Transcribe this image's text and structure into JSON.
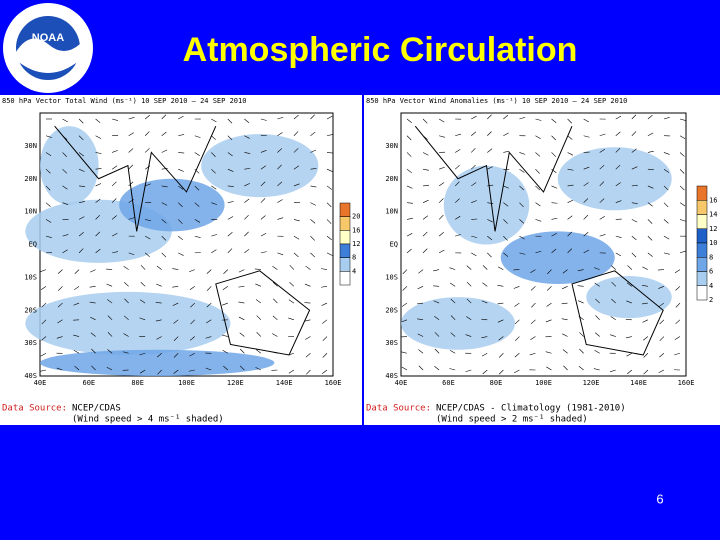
{
  "slide": {
    "title": "Atmospheric Circulation",
    "page_number": "6"
  },
  "panels": [
    {
      "title": "850 hPa Vector Total Wind (ms⁻¹) 10 SEP 2010 — 24 SEP 2010",
      "lat_labels": [
        "30N",
        "20N",
        "10N",
        "EQ",
        "10S",
        "20S",
        "30S",
        "40S"
      ],
      "lon_labels": [
        "40E",
        "60E",
        "80E",
        "100E",
        "120E",
        "140E",
        "160E"
      ],
      "colorbar_labels": [
        "20",
        "16",
        "12",
        "8",
        "4"
      ],
      "source_label": "Data Source:",
      "source": "NCEP/CDAS",
      "note": "(Wind speed > 4 ms⁻¹ shaded)"
    },
    {
      "title": "850 hPa Vector Wind Anomalies (ms⁻¹) 10 SEP 2010 — 24 SEP 2010",
      "lat_labels": [
        "30N",
        "20N",
        "10N",
        "EQ",
        "10S",
        "20S",
        "30S",
        "40S"
      ],
      "lon_labels": [
        "40E",
        "60E",
        "80E",
        "100E",
        "120E",
        "140E",
        "160E"
      ],
      "colorbar_labels": [
        "16",
        "14",
        "12",
        "10",
        "8",
        "6",
        "4",
        "2"
      ],
      "source_label": "Data Source:",
      "source": "NCEP/CDAS - Climatology (1981-2010)",
      "note": "(Wind speed > 2 ms⁻¹ shaded)"
    }
  ]
}
